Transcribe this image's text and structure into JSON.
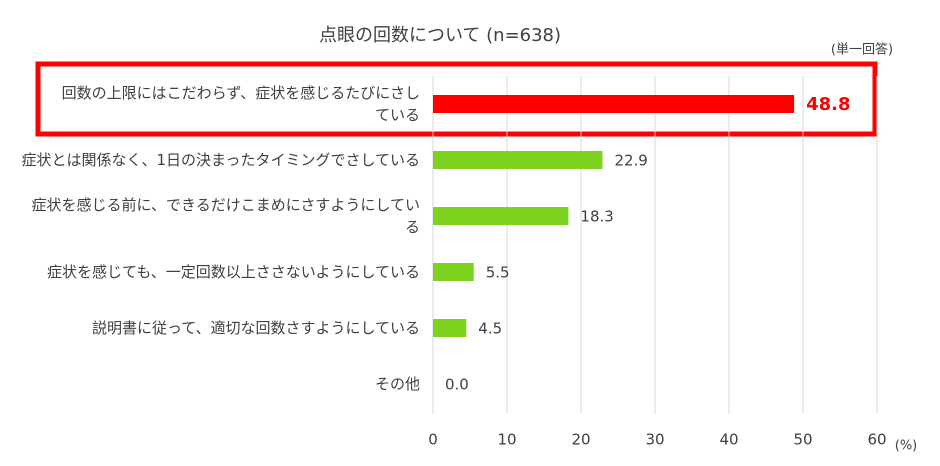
{
  "chart_data": {
    "type": "bar",
    "orientation": "horizontal",
    "title": "点眼の回数について (n=638)",
    "note": "(単一回答)",
    "unit": "(%)",
    "categories": [
      "回数の上限にはこだわらず、症状を感じるたびにさしている",
      "症状とは関係なく、1日の決まったタイミングでさしている",
      "症状を感じる前に、できるだけこまめにさすようにしている",
      "症状を感じても、一定回数以上ささないようにしている",
      "説明書に従って、適切な回数さすようにしている",
      "その他"
    ],
    "values": [
      48.8,
      22.9,
      18.3,
      5.5,
      4.5,
      0
    ],
    "value_labels": [
      "48.8",
      "22.9",
      "18.3",
      "5.5",
      "4.5",
      "0.0"
    ],
    "colors": [
      "#ff0000",
      "#7ed321",
      "#7ed321",
      "#7ed321",
      "#7ed321",
      "#7ed321"
    ],
    "xlim": [
      0,
      60
    ],
    "xticks": [
      0,
      10,
      20,
      30,
      40,
      50,
      60
    ],
    "grid": true
  }
}
